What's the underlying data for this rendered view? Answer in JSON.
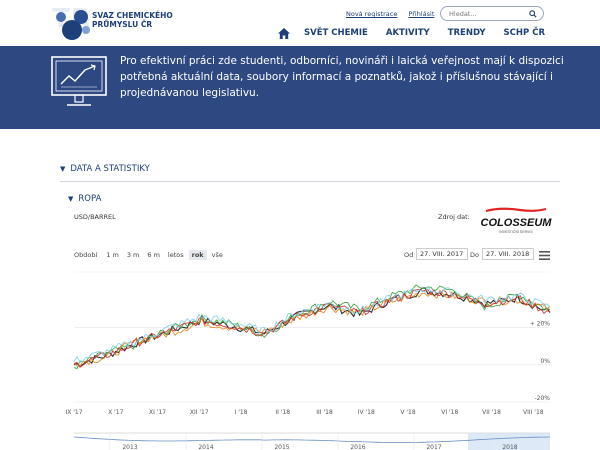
{
  "header": {
    "logo_watermark": "TR",
    "logo_name_lines": [
      "SVAZ CHEMICKÉHO",
      "PRŮMYSLU ČR"
    ],
    "links": [
      "Nová registrace",
      "Přihlásit"
    ],
    "search_placeholder": "Hledat...",
    "nav": [
      "SVĚT CHEMIE",
      "AKTIVITY",
      "TRENDY",
      "SCHP ČR"
    ]
  },
  "banner": {
    "text": "Pro efektivní práci zde studenti, odborníci, novináři i laická veřejnost mají k dispozici potřebná aktuální data, soubory informací a poznatků, jakož i příslušnou stávající i projednávanou legislativu."
  },
  "sections": {
    "main": "DATA A STATISTIKY",
    "sub": "ROPA"
  },
  "chart_info": {
    "unit": "USD/BARREL",
    "source_label": "Zdroj dat:",
    "source_logo": "COLOSSEUM",
    "source_logo_sub": "INVESTIČNÍ SERVIS"
  },
  "range": {
    "label": "Období",
    "buttons": [
      "1 m",
      "3 m",
      "6 m",
      "letos",
      "rok",
      "vše"
    ],
    "active": "rok",
    "from_label": "Od",
    "from_value": "27. VIII. 2017",
    "to_label": "Do",
    "to_value": "27. VIII. 2018"
  },
  "chart_data": {
    "type": "line",
    "x_tick_labels": [
      "IX '17",
      "X '17",
      "XI '17",
      "XII '17",
      "I '18",
      "II '18",
      "III '18",
      "IV '18",
      "V '18",
      "VI '18",
      "VII '18",
      "VIII '18"
    ],
    "y_tick_labels": [
      "+ 20%",
      "0%",
      "-20%"
    ],
    "ylim_percent": [
      -20,
      50
    ],
    "series": [
      {
        "color": "#222222",
        "values": [
          0,
          5,
          12,
          18,
          24,
          21,
          17,
          26,
          32,
          27,
          35,
          40,
          38,
          33,
          36,
          28
        ]
      },
      {
        "color": "#3aa53a",
        "values": [
          -1,
          6,
          11,
          19,
          25,
          22,
          16,
          27,
          34,
          30,
          37,
          42,
          40,
          31,
          38,
          29
        ]
      },
      {
        "color": "#e08a1e",
        "values": [
          1,
          4,
          13,
          17,
          23,
          20,
          18,
          25,
          31,
          28,
          34,
          39,
          37,
          34,
          35,
          30
        ]
      },
      {
        "color": "#d32f2f",
        "values": [
          0,
          5,
          12,
          18,
          24,
          21,
          17,
          26,
          32,
          28,
          35,
          40,
          38,
          33,
          36,
          28
        ]
      },
      {
        "color": "#7fd0e8",
        "values": [
          2,
          7,
          13,
          20,
          26,
          23,
          18,
          28,
          33,
          29,
          36,
          41,
          39,
          35,
          37,
          31
        ]
      }
    ],
    "navigator_years": [
      "2013",
      "2014",
      "2015",
      "2016",
      "2017",
      "2018"
    ]
  }
}
